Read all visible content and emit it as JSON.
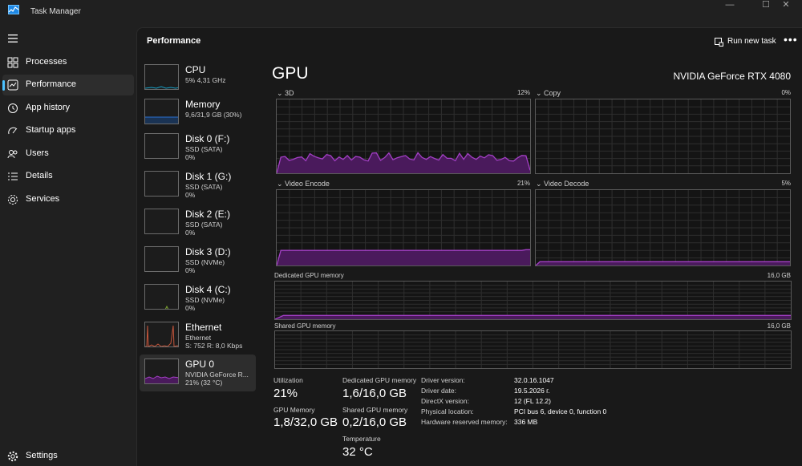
{
  "window": {
    "title": "Task Manager",
    "minimize": "—",
    "maximize": "☐",
    "close": "✕"
  },
  "nav": {
    "items": [
      {
        "label": "Processes",
        "icon": "processes-icon"
      },
      {
        "label": "Performance",
        "icon": "performance-icon",
        "active": true
      },
      {
        "label": "App history",
        "icon": "app-history-icon"
      },
      {
        "label": "Startup apps",
        "icon": "startup-apps-icon"
      },
      {
        "label": "Users",
        "icon": "users-icon"
      },
      {
        "label": "Details",
        "icon": "details-icon"
      },
      {
        "label": "Services",
        "icon": "services-icon"
      }
    ],
    "settings_label": "Settings"
  },
  "header": {
    "title": "Performance",
    "run_new_task": "Run new task",
    "more": "•••"
  },
  "devices": [
    {
      "name": "CPU",
      "sub1": "5% 4,31 GHz",
      "sub2": ""
    },
    {
      "name": "Memory",
      "sub1": "9,6/31,9 GB (30%)",
      "sub2": ""
    },
    {
      "name": "Disk 0 (F:)",
      "sub1": "SSD (SATA)",
      "sub2": "0%"
    },
    {
      "name": "Disk 1 (G:)",
      "sub1": "SSD (SATA)",
      "sub2": "0%"
    },
    {
      "name": "Disk 2 (E:)",
      "sub1": "SSD (SATA)",
      "sub2": "0%"
    },
    {
      "name": "Disk 3 (D:)",
      "sub1": "SSD (NVMe)",
      "sub2": "0%"
    },
    {
      "name": "Disk 4 (C:)",
      "sub1": "SSD (NVMe)",
      "sub2": "0%"
    },
    {
      "name": "Ethernet",
      "sub1": "Ethernet",
      "sub2": "S: 752 R: 8,0 Kbps"
    },
    {
      "name": "GPU 0",
      "sub1": "NVIDIA GeForce R...",
      "sub2": "21% (32 °C)",
      "active": true
    }
  ],
  "gpu": {
    "title": "GPU",
    "model": "NVIDIA GeForce RTX 4080",
    "engines": [
      {
        "label": "3D",
        "value": "12%"
      },
      {
        "label": "Copy",
        "value": "0%"
      },
      {
        "label": "Video Encode",
        "value": "21%"
      },
      {
        "label": "Video Decode",
        "value": "5%"
      }
    ],
    "dedicated": {
      "label": "Dedicated GPU memory",
      "value": "16,0 GB"
    },
    "shared": {
      "label": "Shared GPU memory",
      "value": "16,0 GB"
    },
    "stats": {
      "utilization_label": "Utilization",
      "utilization": "21%",
      "dedicated_label": "Dedicated GPU memory",
      "dedicated": "1,6/16,0 GB",
      "gpu_memory_label": "GPU Memory",
      "gpu_memory": "1,8/32,0 GB",
      "shared_label": "Shared GPU memory",
      "shared": "0,2/16,0 GB",
      "temperature_label": "Temperature",
      "temperature": "32 °C"
    },
    "driver": [
      {
        "label": "Driver version:",
        "value": "32.0.16.1047"
      },
      {
        "label": "Driver date:",
        "value": "19.5.2026 г."
      },
      {
        "label": "DirectX version:",
        "value": "12 (FL 12.2)"
      },
      {
        "label": "Physical location:",
        "value": "PCI bus 6, device 0, function 0"
      },
      {
        "label": "Hardware reserved memory:",
        "value": "336 MB"
      }
    ]
  },
  "colors": {
    "gpu": "#a33fc5",
    "gpu_fill": "#4a1a5c",
    "cpu": "#17a2c9",
    "memory": "#2a6fd1",
    "ethernet": "#c2543a",
    "disk": "#7da630",
    "accent": "#4cc2ff"
  }
}
